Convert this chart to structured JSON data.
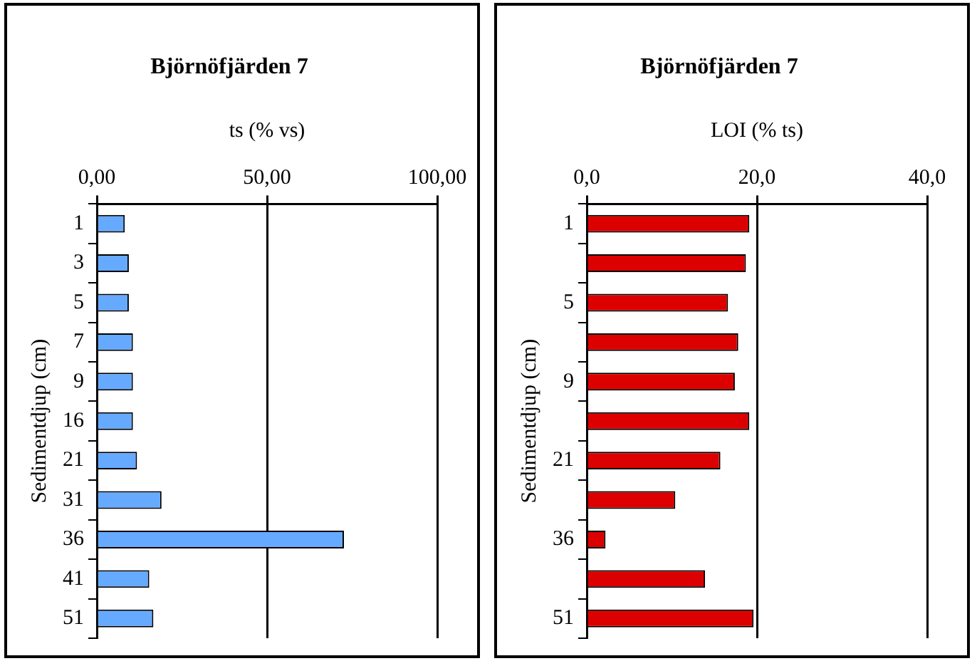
{
  "chart_data": [
    {
      "type": "bar",
      "orientation": "horizontal",
      "title": "Björnöfjärden 7",
      "xlabel": "ts (% vs)",
      "ylabel": "Sedimentdjup (cm)",
      "categories": [
        "1",
        "3",
        "5",
        "7",
        "9",
        "16",
        "21",
        "31",
        "36",
        "41",
        "51"
      ],
      "values": [
        8.2,
        9.4,
        9.4,
        10.6,
        10.6,
        10.6,
        11.8,
        19,
        72.6,
        15.4,
        16.6
      ],
      "color": "#66aaff",
      "xlim": [
        0,
        100
      ],
      "xticks": [
        {
          "value": 0,
          "label": "0,00"
        },
        {
          "value": 50,
          "label": "50,00"
        },
        {
          "value": 100,
          "label": "100,00"
        }
      ],
      "grid": "x"
    },
    {
      "type": "bar",
      "orientation": "horizontal",
      "title": "Björnöfjärden 7",
      "xlabel": "LOI (% ts)",
      "ylabel": "Sedimentdjup (cm)",
      "categories": [
        "1",
        null,
        "5",
        null,
        "9",
        null,
        "21",
        null,
        "36",
        null,
        "51"
      ],
      "values": [
        19.1,
        18.7,
        16.6,
        17.8,
        17.4,
        19.1,
        15.7,
        10.4,
        2.2,
        13.9,
        19.6
      ],
      "color": "#dd0000",
      "xlim": [
        0,
        40
      ],
      "xticks": [
        {
          "value": 0,
          "label": "0,0"
        },
        {
          "value": 20,
          "label": "20,0"
        },
        {
          "value": 40,
          "label": "40,0"
        }
      ],
      "grid": "x"
    }
  ]
}
